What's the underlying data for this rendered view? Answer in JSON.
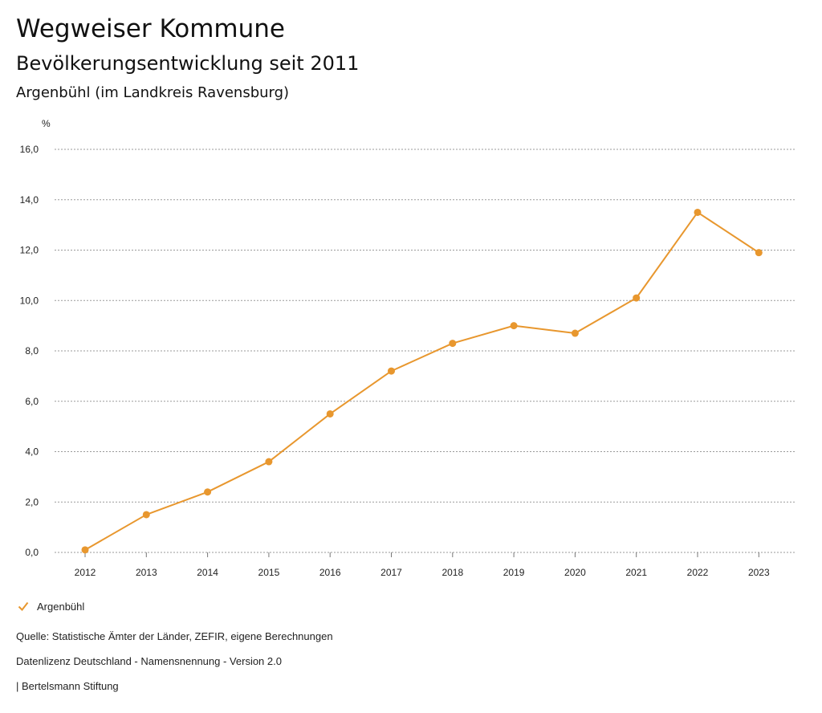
{
  "header": {
    "title": "Wegweiser Kommune",
    "subtitle": "Bevölkerungsentwicklung seit 2011",
    "region": "Argenbühl (im Landkreis Ravensburg)"
  },
  "chart_data": {
    "type": "line",
    "title": "Bevölkerungsentwicklung seit 2011",
    "ylabel": "%",
    "xlabel": "",
    "ylim": [
      0,
      16
    ],
    "yticks": [
      0,
      2,
      4,
      6,
      8,
      10,
      12,
      14,
      16
    ],
    "yticks_labels": [
      "0,0",
      "2,0",
      "4,0",
      "6,0",
      "8,0",
      "10,0",
      "12,0",
      "14,0",
      "16,0"
    ],
    "categories": [
      "2012",
      "2013",
      "2014",
      "2015",
      "2016",
      "2017",
      "2018",
      "2019",
      "2020",
      "2021",
      "2022",
      "2023"
    ],
    "series": [
      {
        "name": "Argenbühl",
        "color": "#e8972e",
        "values": [
          0.1,
          1.5,
          2.4,
          3.6,
          5.5,
          7.2,
          8.3,
          9.0,
          8.7,
          10.1,
          13.5,
          11.9
        ]
      }
    ],
    "grid": true,
    "legend": "bottom-left"
  },
  "legend": {
    "label": "Argenbühl",
    "icon": "check-icon"
  },
  "footer": {
    "source": "Quelle: Statistische Ämter der Länder, ZEFIR, eigene Berechnungen",
    "license": "Datenlizenz Deutschland - Namensnennung - Version 2.0",
    "brand": "| Bertelsmann Stiftung"
  }
}
